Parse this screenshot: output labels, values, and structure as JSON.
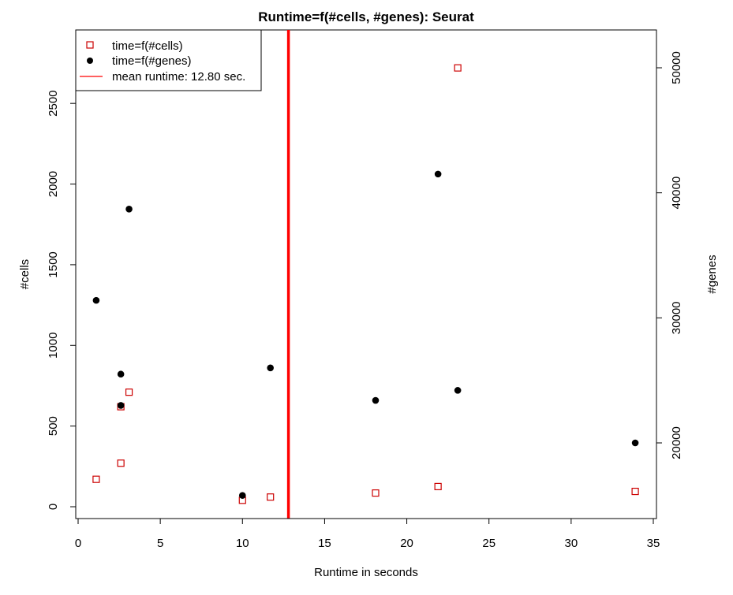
{
  "chart_data": {
    "type": "scatter",
    "title": "Runtime=f(#cells, #genes): Seurat",
    "xlabel": "Runtime in seconds",
    "ylabel_left": "#cells",
    "ylabel_right": "#genes",
    "xlim": [
      0,
      35
    ],
    "ylim_left": [
      0,
      2750
    ],
    "ylim_right": [
      15000,
      52000
    ],
    "x_ticks": [
      "0",
      "5",
      "10",
      "15",
      "20",
      "25",
      "30",
      "35"
    ],
    "y_left_ticks": [
      "0",
      "500",
      "1000",
      "1500",
      "2000",
      "2500"
    ],
    "y_right_ticks": [
      "20000",
      "30000",
      "40000",
      "50000"
    ],
    "grid": false,
    "legend_position": "top-left",
    "series": [
      {
        "name": "time=f(#cells)",
        "marker": "open-square",
        "color": "#cc0000",
        "axis": "left",
        "x": [
          1.1,
          2.6,
          2.6,
          3.1,
          10.0,
          11.7,
          18.1,
          21.9,
          23.1,
          33.9
        ],
        "y": [
          170,
          270,
          620,
          710,
          40,
          60,
          85,
          125,
          2720,
          95
        ]
      },
      {
        "name": "time=f(#genes)",
        "marker": "filled-circle",
        "color": "#000000",
        "axis": "right",
        "x": [
          1.1,
          2.6,
          2.6,
          3.1,
          10.0,
          11.7,
          18.1,
          21.9,
          23.1,
          33.9
        ],
        "y": [
          31400,
          23000,
          25500,
          38700,
          15800,
          26000,
          23400,
          41500,
          24200,
          20000
        ]
      }
    ],
    "reference_line": {
      "name": "mean runtime: 12.80 sec.",
      "orientation": "vertical",
      "x": 12.8,
      "color": "#ff0000"
    }
  }
}
